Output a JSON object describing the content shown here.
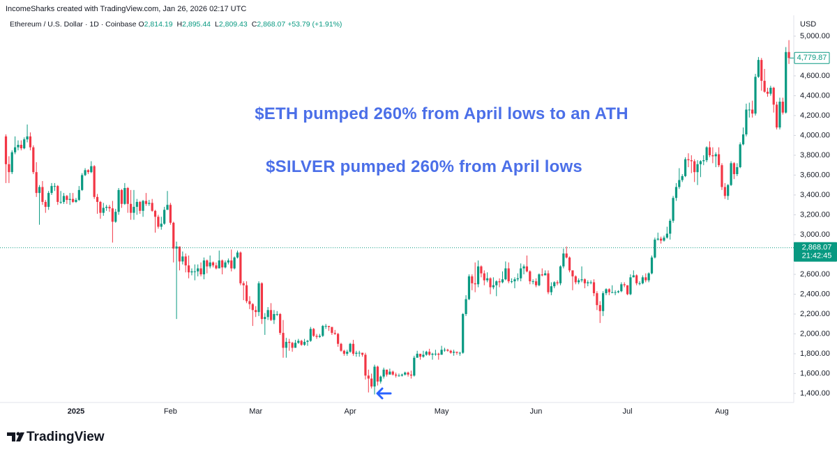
{
  "chart_data": {
    "type": "candlestick",
    "title": "IncomeSharks created with TradingView.com, Jan 26, 2026 02:17 UTC",
    "symbol": "Ethereum / U.S. Dollar · 1D · Coinbase",
    "legend_ohlc": [
      {
        "key": "O",
        "value": "2,814.19"
      },
      {
        "key": "H",
        "value": "2,895.44"
      },
      {
        "key": "L",
        "value": "2,809.43"
      },
      {
        "key": "C",
        "value": "2,868.07"
      }
    ],
    "change": "+53.79 (+1.91%)",
    "annotations": [
      "$ETH pumped 260% from April lows to an ATH",
      "$SILVER pumped 260% from April lows"
    ],
    "brand": "TradingView",
    "y_unit": "USD",
    "up_color": "#089981",
    "down_color": "#f23645",
    "grid": false,
    "ylim": [
      1309,
      5210
    ],
    "yticks": [
      {
        "value": 1400,
        "label": "1,400.00"
      },
      {
        "value": 1600,
        "label": "1,600.00"
      },
      {
        "value": 1800,
        "label": "1,800.00"
      },
      {
        "value": 2000,
        "label": "2,000.00"
      },
      {
        "value": 2200,
        "label": "2,200.00"
      },
      {
        "value": 2400,
        "label": "2,400.00"
      },
      {
        "value": 2600,
        "label": "2,600.00"
      },
      {
        "value": 2800,
        "label": "2,800.00"
      },
      {
        "value": 3000,
        "label": "3,000.00"
      },
      {
        "value": 3200,
        "label": "3,200.00"
      },
      {
        "value": 3400,
        "label": "3,400.00"
      },
      {
        "value": 3600,
        "label": "3,600.00"
      },
      {
        "value": 3800,
        "label": "3,800.00"
      },
      {
        "value": 4000,
        "label": "4,000.00"
      },
      {
        "value": 4200,
        "label": "4,200.00"
      },
      {
        "value": 4400,
        "label": "4,400.00"
      },
      {
        "value": 4600,
        "label": "4,600.00"
      },
      {
        "value": 4800,
        "label": "4,800.00"
      },
      {
        "value": 5000,
        "label": "5,000.00"
      }
    ],
    "last_price": {
      "value": 4779.87,
      "label": "4,779.87"
    },
    "current_price": {
      "value": 2868.07,
      "label": "2,868.07"
    },
    "countdown": "21:42:45",
    "categories": [
      null,
      null,
      null,
      null,
      null,
      null,
      null,
      null,
      null,
      null,
      null,
      null,
      null,
      null,
      null,
      null,
      null,
      null,
      null,
      null,
      null,
      null,
      null,
      "2025",
      null,
      null,
      null,
      null,
      null,
      null,
      null,
      null,
      null,
      null,
      null,
      null,
      null,
      null,
      null,
      null,
      null,
      null,
      null,
      null,
      null,
      null,
      null,
      null,
      null,
      null,
      null,
      null,
      null,
      null,
      "Feb",
      null,
      null,
      null,
      null,
      null,
      null,
      null,
      null,
      null,
      null,
      null,
      null,
      null,
      null,
      null,
      null,
      null,
      null,
      null,
      null,
      null,
      null,
      null,
      null,
      null,
      null,
      null,
      "Mar",
      null,
      null,
      null,
      null,
      null,
      null,
      null,
      null,
      null,
      null,
      null,
      null,
      null,
      null,
      null,
      null,
      null,
      null,
      null,
      null,
      null,
      null,
      null,
      null,
      null,
      null,
      null,
      null,
      null,
      null,
      "Apr",
      null,
      null,
      null,
      null,
      null,
      null,
      null,
      null,
      null,
      null,
      null,
      null,
      null,
      null,
      null,
      null,
      null,
      null,
      null,
      null,
      null,
      null,
      null,
      null,
      null,
      null,
      null,
      null,
      null,
      "May",
      null,
      null,
      null,
      null,
      null,
      null,
      null,
      null,
      null,
      null,
      null,
      null,
      null,
      null,
      null,
      null,
      null,
      null,
      null,
      null,
      null,
      null,
      null,
      null,
      null,
      null,
      null,
      null,
      null,
      null,
      "Jun",
      null,
      null,
      null,
      null,
      null,
      null,
      null,
      null,
      null,
      null,
      null,
      null,
      null,
      null,
      null,
      null,
      null,
      null,
      null,
      null,
      null,
      null,
      null,
      null,
      null,
      null,
      null,
      null,
      null,
      "Jul",
      null,
      null,
      null,
      null,
      null,
      null,
      null,
      null,
      null,
      null,
      null,
      null,
      null,
      null,
      null,
      null,
      null,
      null,
      null,
      null,
      null,
      null,
      null,
      null,
      null,
      null,
      null,
      null,
      null,
      null,
      "Aug",
      null,
      null,
      null,
      null,
      null,
      null,
      null,
      null,
      null,
      null,
      null,
      null,
      null,
      null,
      null,
      null,
      null,
      null,
      null,
      null,
      null,
      null
    ],
    "open": [
      3990,
      3710,
      3630,
      3830,
      3880,
      3905,
      3870,
      3960,
      3990,
      3880,
      3630,
      3420,
      3480,
      3330,
      3280,
      3420,
      3490,
      3490,
      3330,
      3330,
      3390,
      3350,
      3360,
      3330,
      3350,
      3450,
      3600,
      3650,
      3630,
      3690,
      3380,
      3330,
      3220,
      3270,
      3280,
      3265,
      3130,
      3230,
      3450,
      3310,
      3470,
      3310,
      3220,
      3280,
      3330,
      3240,
      3340,
      3310,
      3320,
      3240,
      3180,
      3080,
      3110,
      3250,
      3300,
      3120,
      2860,
      2880,
      2730,
      2780,
      2690,
      2620,
      2630,
      2630,
      2660,
      2600,
      2740,
      2680,
      2720,
      2690,
      2660,
      2740,
      2670,
      2720,
      2740,
      2660,
      2770,
      2820,
      2510,
      2490,
      2330,
      2300,
      2240,
      2220,
      2510,
      2150,
      2170,
      2240,
      2140,
      2200,
      2200,
      2010,
      1860,
      1920,
      1910,
      1860,
      1910,
      1930,
      1890,
      1920,
      1930,
      2050,
      1980,
      1970,
      1980,
      2080,
      2080,
      2070,
      2010,
      2000,
      1900,
      1830,
      1800,
      1820,
      1900,
      1800,
      1810,
      1810,
      1790,
      1580,
      1550,
      1470,
      1670,
      1520,
      1570,
      1640,
      1590,
      1620,
      1590,
      1580,
      1580,
      1590,
      1610,
      1590,
      1580,
      1760,
      1800,
      1770,
      1790,
      1820,
      1790,
      1800,
      1800,
      1790,
      1840,
      1840,
      1830,
      1810,
      1820,
      1810,
      1810,
      2200,
      2350,
      2580,
      2510,
      2500,
      2680,
      2610,
      2540,
      2560,
      2470,
      2490,
      2530,
      2520,
      2550,
      2660,
      2530,
      2530,
      2550,
      2560,
      2660,
      2680,
      2630,
      2530,
      2530,
      2490,
      2600,
      2590,
      2610,
      2420,
      2480,
      2520,
      2510,
      2680,
      2810,
      2770,
      2640,
      2580,
      2520,
      2540,
      2550,
      2510,
      2520,
      2520,
      2410,
      2290,
      2230,
      2410,
      2450,
      2420,
      2420,
      2420,
      2430,
      2500,
      2490,
      2400,
      2570,
      2590,
      2510,
      2510,
      2570,
      2540,
      2610,
      2770,
      2950,
      2960,
      2940,
      2970,
      3010,
      3140,
      3370,
      3480,
      3550,
      3590,
      3760,
      3750,
      3740,
      3630,
      3710,
      3740,
      3750,
      3880,
      3800,
      3790,
      3810,
      3700,
      3480,
      3390,
      3500,
      3720,
      3610,
      3680,
      3910,
      4010,
      4260,
      4260,
      4220,
      4590,
      4760,
      4550,
      4440,
      4420,
      4480,
      4310,
      4080,
      4340,
      4230,
      4840
    ],
    "high": [
      4010,
      3790,
      3850,
      3990,
      3950,
      3950,
      3980,
      4110,
      4030,
      3900,
      3730,
      3500,
      3540,
      3350,
      3440,
      3520,
      3520,
      3500,
      3440,
      3420,
      3400,
      3420,
      3420,
      3370,
      3490,
      3620,
      3670,
      3660,
      3740,
      3700,
      3410,
      3340,
      3320,
      3300,
      3300,
      3340,
      3260,
      3470,
      3460,
      3520,
      3480,
      3450,
      3450,
      3360,
      3340,
      3350,
      3420,
      3350,
      3360,
      3250,
      3200,
      3180,
      3280,
      3440,
      3320,
      3130,
      2930,
      2880,
      2830,
      2810,
      2790,
      2660,
      2700,
      2700,
      2720,
      2770,
      2750,
      2790,
      2730,
      2720,
      2840,
      2750,
      2740,
      2760,
      2850,
      2780,
      2840,
      2830,
      2530,
      2530,
      2380,
      2310,
      2280,
      2530,
      2520,
      2210,
      2270,
      2310,
      2240,
      2230,
      2210,
      2140,
      1960,
      1950,
      1920,
      1940,
      1950,
      1940,
      1950,
      1940,
      2070,
      2060,
      2000,
      2000,
      2090,
      2100,
      2080,
      2070,
      2040,
      2010,
      1910,
      1840,
      1840,
      1910,
      1940,
      1830,
      1830,
      1810,
      1810,
      1640,
      1600,
      1690,
      1680,
      1580,
      1660,
      1640,
      1650,
      1630,
      1610,
      1600,
      1600,
      1620,
      1620,
      1630,
      1780,
      1830,
      1800,
      1830,
      1830,
      1850,
      1810,
      1840,
      1810,
      1880,
      1860,
      1850,
      1840,
      1840,
      1820,
      1820,
      2210,
      2390,
      2600,
      2600,
      2720,
      2740,
      2690,
      2640,
      2620,
      2570,
      2570,
      2540,
      2560,
      2630,
      2730,
      2720,
      2560,
      2570,
      2610,
      2710,
      2700,
      2790,
      2640,
      2550,
      2560,
      2610,
      2660,
      2640,
      2640,
      2520,
      2530,
      2540,
      2690,
      2860,
      2880,
      2780,
      2640,
      2590,
      2560,
      2680,
      2560,
      2540,
      2540,
      2550,
      2430,
      2330,
      2430,
      2460,
      2460,
      2490,
      2440,
      2440,
      2520,
      2520,
      2490,
      2600,
      2640,
      2600,
      2530,
      2590,
      2610,
      2620,
      2790,
      2970,
      3020,
      2980,
      2990,
      3080,
      3160,
      3390,
      3520,
      3670,
      3610,
      3780,
      3820,
      3800,
      3760,
      3750,
      3750,
      3800,
      3890,
      3940,
      3880,
      3830,
      3880,
      3720,
      3520,
      3510,
      3740,
      3730,
      3720,
      3930,
      4080,
      4320,
      4330,
      4350,
      4620,
      4790,
      4780,
      4670,
      4480,
      4500,
      4490,
      4340,
      4380,
      4380,
      4890,
      4960
    ],
    "low": [
      3520,
      3520,
      3610,
      3810,
      3850,
      3850,
      3860,
      3930,
      3850,
      3610,
      3380,
      3100,
      3300,
      3220,
      3250,
      3400,
      3440,
      3300,
      3310,
      3310,
      3310,
      3300,
      3320,
      3320,
      3340,
      3440,
      3590,
      3610,
      3620,
      3360,
      3210,
      3160,
      3190,
      3240,
      3230,
      2920,
      3120,
      3200,
      3270,
      3300,
      3220,
      3150,
      3150,
      3200,
      3210,
      3180,
      3290,
      3290,
      3230,
      3020,
      3060,
      3050,
      3100,
      3250,
      3100,
      2720,
      2150,
      2640,
      2700,
      2620,
      2560,
      2590,
      2540,
      2580,
      2580,
      2550,
      2610,
      2660,
      2670,
      2650,
      2660,
      2600,
      2660,
      2700,
      2630,
      2650,
      2760,
      2490,
      2340,
      2310,
      2250,
      2080,
      2170,
      2180,
      2100,
      1990,
      2140,
      2130,
      2100,
      2180,
      1990,
      1760,
      1760,
      1830,
      1820,
      1860,
      1900,
      1880,
      1880,
      1880,
      1920,
      1970,
      1950,
      1960,
      1970,
      2050,
      2030,
      1990,
      1990,
      1870,
      1820,
      1780,
      1780,
      1810,
      1780,
      1770,
      1770,
      1770,
      1540,
      1410,
      1450,
      1390,
      1480,
      1500,
      1550,
      1570,
      1590,
      1580,
      1560,
      1570,
      1570,
      1580,
      1570,
      1550,
      1570,
      1760,
      1740,
      1760,
      1780,
      1780,
      1740,
      1780,
      1740,
      1790,
      1820,
      1820,
      1800,
      1780,
      1790,
      1780,
      1800,
      2180,
      2340,
      2440,
      2420,
      2470,
      2570,
      2490,
      2520,
      2400,
      2450,
      2380,
      2470,
      2510,
      2540,
      2510,
      2510,
      2460,
      2530,
      2530,
      2600,
      2620,
      2500,
      2500,
      2470,
      2480,
      2580,
      2590,
      2400,
      2390,
      2460,
      2490,
      2490,
      2660,
      2760,
      2620,
      2440,
      2500,
      2500,
      2520,
      2460,
      2480,
      2500,
      2380,
      2240,
      2110,
      2180,
      2390,
      2390,
      2410,
      2390,
      2410,
      2420,
      2470,
      2390,
      2390,
      2570,
      2490,
      2490,
      2500,
      2520,
      2520,
      2600,
      2760,
      2940,
      2910,
      2930,
      2960,
      2950,
      3120,
      3340,
      3460,
      3530,
      3580,
      3680,
      3620,
      3530,
      3500,
      3580,
      3700,
      3730,
      3780,
      3720,
      3680,
      3680,
      3450,
      3360,
      3350,
      3490,
      3560,
      3590,
      3670,
      3900,
      3990,
      4180,
      4180,
      4200,
      4580,
      4450,
      4430,
      4390,
      4400,
      4230,
      4060,
      4060,
      4210,
      4220,
      4720
    ],
    "close": [
      3710,
      3630,
      3830,
      3880,
      3905,
      3870,
      3960,
      3990,
      3880,
      3630,
      3420,
      3480,
      3330,
      3280,
      3420,
      3490,
      3490,
      3330,
      3330,
      3390,
      3350,
      3360,
      3330,
      3350,
      3450,
      3600,
      3650,
      3630,
      3690,
      3380,
      3330,
      3220,
      3270,
      3280,
      3265,
      3130,
      3230,
      3450,
      3310,
      3470,
      3310,
      3220,
      3280,
      3330,
      3240,
      3340,
      3310,
      3320,
      3240,
      3180,
      3080,
      3110,
      3250,
      3300,
      3120,
      2860,
      2880,
      2730,
      2780,
      2690,
      2620,
      2630,
      2630,
      2660,
      2600,
      2740,
      2680,
      2720,
      2690,
      2660,
      2740,
      2670,
      2720,
      2740,
      2660,
      2770,
      2820,
      2510,
      2490,
      2330,
      2300,
      2240,
      2220,
      2510,
      2150,
      2170,
      2240,
      2140,
      2200,
      2200,
      2010,
      1860,
      1920,
      1910,
      1860,
      1910,
      1930,
      1890,
      1920,
      1930,
      2050,
      1980,
      1970,
      1980,
      2080,
      2080,
      2070,
      2010,
      2000,
      1900,
      1830,
      1800,
      1820,
      1900,
      1800,
      1810,
      1810,
      1790,
      1580,
      1550,
      1470,
      1670,
      1520,
      1570,
      1640,
      1590,
      1620,
      1590,
      1580,
      1580,
      1590,
      1610,
      1590,
      1580,
      1760,
      1800,
      1770,
      1790,
      1820,
      1790,
      1800,
      1800,
      1790,
      1840,
      1840,
      1830,
      1810,
      1820,
      1810,
      1810,
      2200,
      2350,
      2580,
      2510,
      2500,
      2680,
      2610,
      2540,
      2560,
      2470,
      2490,
      2530,
      2520,
      2550,
      2660,
      2530,
      2530,
      2550,
      2560,
      2660,
      2680,
      2630,
      2530,
      2530,
      2490,
      2600,
      2590,
      2610,
      2420,
      2480,
      2520,
      2510,
      2680,
      2810,
      2770,
      2640,
      2580,
      2520,
      2540,
      2550,
      2510,
      2520,
      2520,
      2410,
      2290,
      2230,
      2410,
      2450,
      2420,
      2420,
      2420,
      2430,
      2500,
      2490,
      2400,
      2570,
      2590,
      2510,
      2510,
      2570,
      2540,
      2610,
      2770,
      2950,
      2960,
      2940,
      2970,
      3010,
      3140,
      3370,
      3480,
      3550,
      3590,
      3760,
      3750,
      3740,
      3630,
      3710,
      3740,
      3750,
      3880,
      3800,
      3790,
      3810,
      3700,
      3480,
      3390,
      3500,
      3720,
      3610,
      3680,
      3910,
      4010,
      4260,
      4260,
      4220,
      4590,
      4760,
      4550,
      4440,
      4420,
      4480,
      4310,
      4080,
      4340,
      4230,
      4840,
      4779.87
    ]
  }
}
